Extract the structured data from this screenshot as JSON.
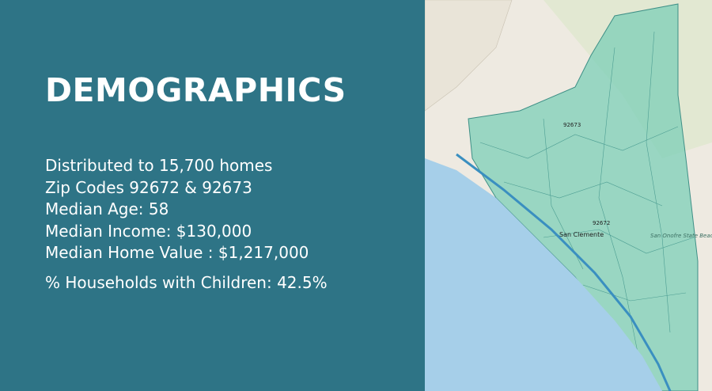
{
  "title": "DEMOGRAPHICS",
  "lines": [
    "Distributed to 15,700 homes",
    "Zip Codes 92672 & 92673",
    "Median Age: 58",
    "Median Income: $130,000",
    "Median Home Value : $1,217,000",
    "% Households with Children: 42.5%"
  ],
  "map": {
    "labels": [
      "92673",
      "92672",
      "San Clemente",
      "San Onofre State Beach"
    ]
  }
}
